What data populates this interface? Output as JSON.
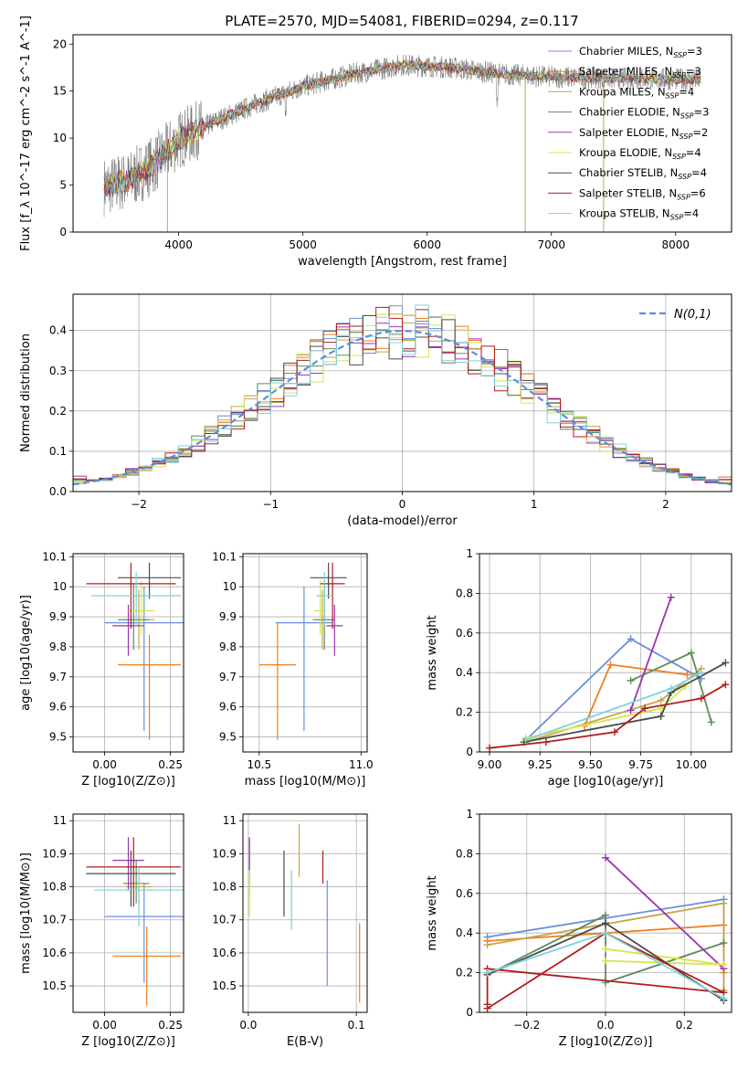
{
  "figure": {
    "title": "PLATE=2570, MJD=54081, FIBERID=0294, z=0.117"
  },
  "models": [
    {
      "label": "Chabrier MILES, N_SSP=3",
      "lib": "Chabrier MILES",
      "nssp": "3",
      "color": "#6a8fd8"
    },
    {
      "label": "Salpeter MILES, N_SSP=3",
      "lib": "Salpeter MILES",
      "nssp": "3",
      "color": "#f07f1e"
    },
    {
      "label": "Kroupa MILES, N_SSP=4",
      "lib": "Kroupa MILES",
      "nssp": "4",
      "color": "#c6a64a"
    },
    {
      "label": "Chabrier ELODIE, N_SSP=3",
      "lib": "Chabrier ELODIE",
      "nssp": "3",
      "color": "#5d8a5d"
    },
    {
      "label": "Salpeter ELODIE, N_SSP=2",
      "lib": "Salpeter ELODIE",
      "nssp": "2",
      "color": "#9b33b3"
    },
    {
      "label": "Kroupa ELODIE, N_SSP=4",
      "lib": "Kroupa ELODIE",
      "nssp": "4",
      "color": "#d7e64a"
    },
    {
      "label": "Chabrier STELIB, N_SSP=4",
      "lib": "Chabrier STELIB",
      "nssp": "4",
      "color": "#4c4c4c"
    },
    {
      "label": "Salpeter STELIB, N_SSP=6",
      "lib": "Salpeter STELIB",
      "nssp": "6",
      "color": "#b01c1c"
    },
    {
      "label": "Kroupa STELIB, N_SSP=4",
      "lib": "Kroupa STELIB",
      "nssp": "4",
      "color": "#7fd3db"
    }
  ],
  "chart_data": [
    {
      "id": "spectrum",
      "type": "line",
      "xlabel": "wavelength [Angstrom, rest frame]",
      "ylabel": "Flux [f_λ 10^-17 erg cm^-2 s^-1 A^-1]",
      "xlim": [
        3150,
        8450
      ],
      "ylim": [
        0,
        21
      ],
      "xticks": [
        4000,
        5000,
        6000,
        7000,
        8000
      ],
      "yticks": [
        0,
        5,
        10,
        15,
        20
      ],
      "continuum": [
        [
          3400,
          4.8
        ],
        [
          3600,
          5.5
        ],
        [
          3800,
          7.2
        ],
        [
          4000,
          9.8
        ],
        [
          4300,
          11.8
        ],
        [
          4600,
          13.5
        ],
        [
          5000,
          15.5
        ],
        [
          5400,
          16.8
        ],
        [
          5800,
          17.8
        ],
        [
          6200,
          17.5
        ],
        [
          6600,
          16.8
        ],
        [
          7000,
          16.5
        ],
        [
          7400,
          16.4
        ],
        [
          7800,
          16.3
        ],
        [
          8200,
          16.2
        ]
      ],
      "spikes": [
        {
          "x": 3910,
          "y": 0
        },
        {
          "x": 6790,
          "y": 0
        },
        {
          "x": 7420,
          "y": 0
        }
      ]
    },
    {
      "id": "residuals",
      "type": "area",
      "xlabel": "(data-model)/error",
      "ylabel": "Normed distribution",
      "xlim": [
        -2.5,
        2.5
      ],
      "ylim": [
        0,
        0.49
      ],
      "xticks": [
        -2,
        -1,
        0,
        1,
        2
      ],
      "yticks": [
        0.0,
        0.1,
        0.2,
        0.3,
        0.4
      ],
      "reference_label": "N(0,1)",
      "reference": {
        "mean": 0,
        "sigma": 1
      },
      "bin_width": 0.1
    },
    {
      "id": "age_vs_Z",
      "type": "scatter",
      "xlabel": "Z [log10(Z/Z⊙)]",
      "ylabel": "age [log10(age/yr)]",
      "xlim": [
        -0.12,
        0.3
      ],
      "ylim": [
        9.45,
        10.11
      ],
      "xticks": [
        0.0,
        0.25
      ],
      "xticklabels": [
        "0.00",
        "0.25"
      ],
      "yticks": [
        9.5,
        9.6,
        9.7,
        9.8,
        9.9,
        10.0,
        10.1
      ],
      "points": [
        {
          "x": 0.15,
          "y": 9.88,
          "xerr": 0.15,
          "yerr": [
            0.36,
            0.12
          ]
        },
        {
          "x": 0.17,
          "y": 9.74,
          "xerr": 0.12,
          "yerr": [
            0.25,
            0.1
          ]
        },
        {
          "x": 0.13,
          "y": 9.89,
          "xerr": 0.06,
          "yerr": [
            0.1,
            0.1
          ]
        },
        {
          "x": 0.11,
          "y": 9.89,
          "xerr": 0.06,
          "yerr": [
            0.1,
            0.12
          ]
        },
        {
          "x": 0.09,
          "y": 9.87,
          "xerr": 0.06,
          "yerr": [
            0.1,
            0.07
          ]
        },
        {
          "x": 0.14,
          "y": 9.92,
          "xerr": 0.05,
          "yerr": [
            0.08,
            0.1
          ]
        },
        {
          "x": 0.17,
          "y": 10.03,
          "xerr": 0.12,
          "yerr": [
            0.07,
            0.05
          ]
        },
        {
          "x": 0.1,
          "y": 10.01,
          "xerr": 0.17,
          "yerr": [
            0.15,
            0.07
          ]
        },
        {
          "x": 0.12,
          "y": 9.97,
          "xerr": 0.17,
          "yerr": [
            0.1,
            0.08
          ]
        }
      ]
    },
    {
      "id": "age_vs_mass",
      "type": "scatter",
      "xlabel": "mass [log10(M/M⊙)]",
      "ylabel": "",
      "xlim": [
        10.42,
        11.03
      ],
      "ylim": [
        9.45,
        10.11
      ],
      "xticks": [
        10.5,
        11.0
      ],
      "xticklabels": [
        "10.5",
        "11.0"
      ],
      "yticks": [
        9.5,
        9.6,
        9.7,
        9.8,
        9.9,
        10.0,
        10.1
      ],
      "points": [
        {
          "x": 10.72,
          "y": 9.88,
          "xerr": 0.14,
          "yerr": [
            0.36,
            0.12
          ]
        },
        {
          "x": 10.59,
          "y": 9.74,
          "xerr": 0.09,
          "yerr": [
            0.25,
            0.14
          ]
        },
        {
          "x": 10.81,
          "y": 9.89,
          "xerr": 0.05,
          "yerr": [
            0.1,
            0.1
          ]
        },
        {
          "x": 10.82,
          "y": 9.89,
          "xerr": 0.05,
          "yerr": [
            0.1,
            0.12
          ]
        },
        {
          "x": 10.87,
          "y": 9.87,
          "xerr": 0.04,
          "yerr": [
            0.1,
            0.07
          ]
        },
        {
          "x": 10.8,
          "y": 9.92,
          "xerr": 0.03,
          "yerr": [
            0.08,
            0.1
          ]
        },
        {
          "x": 10.84,
          "y": 10.03,
          "xerr": 0.09,
          "yerr": [
            0.07,
            0.05
          ]
        },
        {
          "x": 10.86,
          "y": 10.01,
          "xerr": 0.06,
          "yerr": [
            0.15,
            0.07
          ]
        },
        {
          "x": 10.82,
          "y": 9.97,
          "xerr": 0.04,
          "yerr": [
            0.1,
            0.08
          ]
        }
      ]
    },
    {
      "id": "weight_vs_age",
      "type": "line",
      "xlabel": "age [log10(age/yr)]",
      "ylabel": "mass weight",
      "xlim": [
        8.95,
        10.2
      ],
      "ylim": [
        0,
        1.0
      ],
      "xticks": [
        9.0,
        9.25,
        9.5,
        9.75,
        10.0
      ],
      "xticklabels": [
        "9.00",
        "9.25",
        "9.50",
        "9.75",
        "10.00"
      ],
      "yticks": [
        0.0,
        0.2,
        0.4,
        0.6,
        0.8,
        1.0
      ],
      "series": [
        {
          "points": [
            [
              9.18,
              0.06
            ],
            [
              9.7,
              0.57
            ],
            [
              10.05,
              0.37
            ]
          ]
        },
        {
          "points": [
            [
              9.47,
              0.13
            ],
            [
              9.6,
              0.44
            ],
            [
              9.98,
              0.39
            ]
          ]
        },
        {
          "points": [
            [
              9.18,
              0.05
            ],
            [
              9.85,
              0.26
            ],
            [
              10.05,
              0.42
            ]
          ]
        },
        {
          "points": [
            [
              9.7,
              0.36
            ],
            [
              10.0,
              0.5
            ],
            [
              10.1,
              0.15
            ]
          ]
        },
        {
          "points": [
            [
              9.7,
              0.21
            ],
            [
              9.9,
              0.78
            ]
          ]
        },
        {
          "points": [
            [
              9.18,
              0.07
            ],
            [
              9.85,
              0.22
            ],
            [
              9.97,
              0.33
            ]
          ]
        },
        {
          "points": [
            [
              9.17,
              0.05
            ],
            [
              9.85,
              0.18
            ],
            [
              9.9,
              0.3
            ],
            [
              10.17,
              0.45
            ]
          ]
        },
        {
          "points": [
            [
              9.0,
              0.02
            ],
            [
              9.28,
              0.05
            ],
            [
              9.62,
              0.1
            ],
            [
              9.77,
              0.22
            ],
            [
              10.05,
              0.27
            ],
            [
              10.17,
              0.34
            ]
          ]
        },
        {
          "points": [
            [
              9.18,
              0.06
            ],
            [
              9.9,
              0.32
            ],
            [
              10.05,
              0.4
            ]
          ]
        }
      ]
    },
    {
      "id": "mass_vs_Z",
      "type": "scatter",
      "xlabel": "Z [log10(Z/Z⊙)]",
      "ylabel": "mass [log10(M/M⊙)]",
      "xlim": [
        -0.12,
        0.3
      ],
      "ylim": [
        10.42,
        11.02
      ],
      "xticks": [
        0.0,
        0.25
      ],
      "xticklabels": [
        "0.00",
        "0.25"
      ],
      "yticks": [
        10.5,
        10.6,
        10.7,
        10.8,
        10.9,
        11.0
      ],
      "points": [
        {
          "x": 0.15,
          "y": 10.71,
          "xerr": 0.15,
          "yerr": [
            0.2,
            0.1
          ]
        },
        {
          "x": 0.16,
          "y": 10.59,
          "xerr": 0.13,
          "yerr": [
            0.15,
            0.09
          ]
        },
        {
          "x": 0.13,
          "y": 10.8,
          "xerr": 0.05,
          "yerr": [
            0.06,
            0.05
          ]
        },
        {
          "x": 0.12,
          "y": 10.81,
          "xerr": 0.05,
          "yerr": [
            0.06,
            0.07
          ]
        },
        {
          "x": 0.09,
          "y": 10.88,
          "xerr": 0.06,
          "yerr": [
            0.09,
            0.07
          ]
        },
        {
          "x": 0.13,
          "y": 10.79,
          "xerr": 0.05,
          "yerr": [
            0.08,
            0.07
          ]
        },
        {
          "x": 0.1,
          "y": 10.84,
          "xerr": 0.17,
          "yerr": [
            0.1,
            0.07
          ]
        },
        {
          "x": 0.11,
          "y": 10.86,
          "xerr": 0.18,
          "yerr": [
            0.12,
            0.09
          ]
        },
        {
          "x": 0.13,
          "y": 10.79,
          "xerr": 0.17,
          "yerr": [
            0.11,
            0.07
          ]
        }
      ]
    },
    {
      "id": "mass_vs_ebv",
      "type": "scatter",
      "xlabel": "E(B-V)",
      "ylabel": "",
      "xlim": [
        -0.005,
        0.11
      ],
      "ylim": [
        10.42,
        11.02
      ],
      "xticks": [
        0.0,
        0.1
      ],
      "xticklabels": [
        "0.0",
        "0.1"
      ],
      "yticks": [
        10.5,
        10.6,
        10.7,
        10.8,
        10.9,
        11.0
      ],
      "points": [
        {
          "x": 0.073,
          "y": 10.66,
          "xerr": 0,
          "yerr": [
            0.16,
            0.16
          ]
        },
        {
          "x": 0.103,
          "y": 10.57,
          "xerr": 0,
          "yerr": [
            0.12,
            0.12
          ]
        },
        {
          "x": 0.047,
          "y": 10.91,
          "xerr": 0,
          "yerr": [
            0.08,
            0.08
          ]
        },
        {
          "x": 0.001,
          "y": 10.86,
          "xerr": 0,
          "yerr": [
            0.08,
            0.08
          ]
        },
        {
          "x": 0.001,
          "y": 10.9,
          "xerr": 0,
          "yerr": [
            0.05,
            0.05
          ]
        },
        {
          "x": 0.001,
          "y": 10.78,
          "xerr": 0,
          "yerr": [
            0.07,
            0.07
          ]
        },
        {
          "x": 0.033,
          "y": 10.81,
          "xerr": 0,
          "yerr": [
            0.1,
            0.1
          ]
        },
        {
          "x": 0.069,
          "y": 10.86,
          "xerr": 0,
          "yerr": [
            0.05,
            0.05
          ]
        },
        {
          "x": 0.04,
          "y": 10.76,
          "xerr": 0,
          "yerr": [
            0.09,
            0.09
          ]
        }
      ]
    },
    {
      "id": "weight_vs_Z",
      "type": "line",
      "xlabel": "Z [log10(Z/Z⊙)]",
      "ylabel": "mass weight",
      "xlim": [
        -0.32,
        0.32
      ],
      "ylim": [
        0,
        1.0
      ],
      "xticks": [
        -0.2,
        0.0,
        0.2
      ],
      "xticklabels": [
        "−0.2",
        "0.0",
        "0.2"
      ],
      "yticks": [
        0.0,
        0.2,
        0.4,
        0.6,
        0.8,
        1.0
      ],
      "series": [
        {
          "points": [
            [
              -0.3,
              0.38
            ],
            [
              0.3,
              0.57
            ],
            [
              0.3,
              0.06
            ]
          ]
        },
        {
          "points": [
            [
              -0.3,
              0.36
            ],
            [
              0.3,
              0.44
            ],
            [
              0.3,
              0.2
            ]
          ]
        },
        {
          "points": [
            [
              -0.3,
              0.34
            ],
            [
              0.3,
              0.55
            ],
            [
              0.3,
              0.11
            ]
          ]
        },
        {
          "points": [
            [
              -0.3,
              0.19
            ],
            [
              0.0,
              0.49
            ],
            [
              0.0,
              0.15
            ],
            [
              0.3,
              0.35
            ]
          ]
        },
        {
          "points": [
            [
              0.0,
              0.78
            ],
            [
              0.3,
              0.22
            ]
          ]
        },
        {
          "points": [
            [
              0.0,
              0.32
            ],
            [
              0.3,
              0.24
            ],
            [
              0.0,
              0.26
            ]
          ]
        },
        {
          "points": [
            [
              -0.3,
              0.19
            ],
            [
              0.0,
              0.45
            ],
            [
              0.3,
              0.06
            ]
          ]
        },
        {
          "points": [
            [
              -0.3,
              0.02
            ],
            [
              0.0,
              0.4
            ],
            [
              0.3,
              0.1
            ],
            [
              -0.3,
              0.22
            ],
            [
              -0.3,
              0.04
            ]
          ]
        },
        {
          "points": [
            [
              -0.3,
              0.2
            ],
            [
              0.0,
              0.4
            ],
            [
              0.3,
              0.07
            ]
          ]
        }
      ]
    }
  ]
}
